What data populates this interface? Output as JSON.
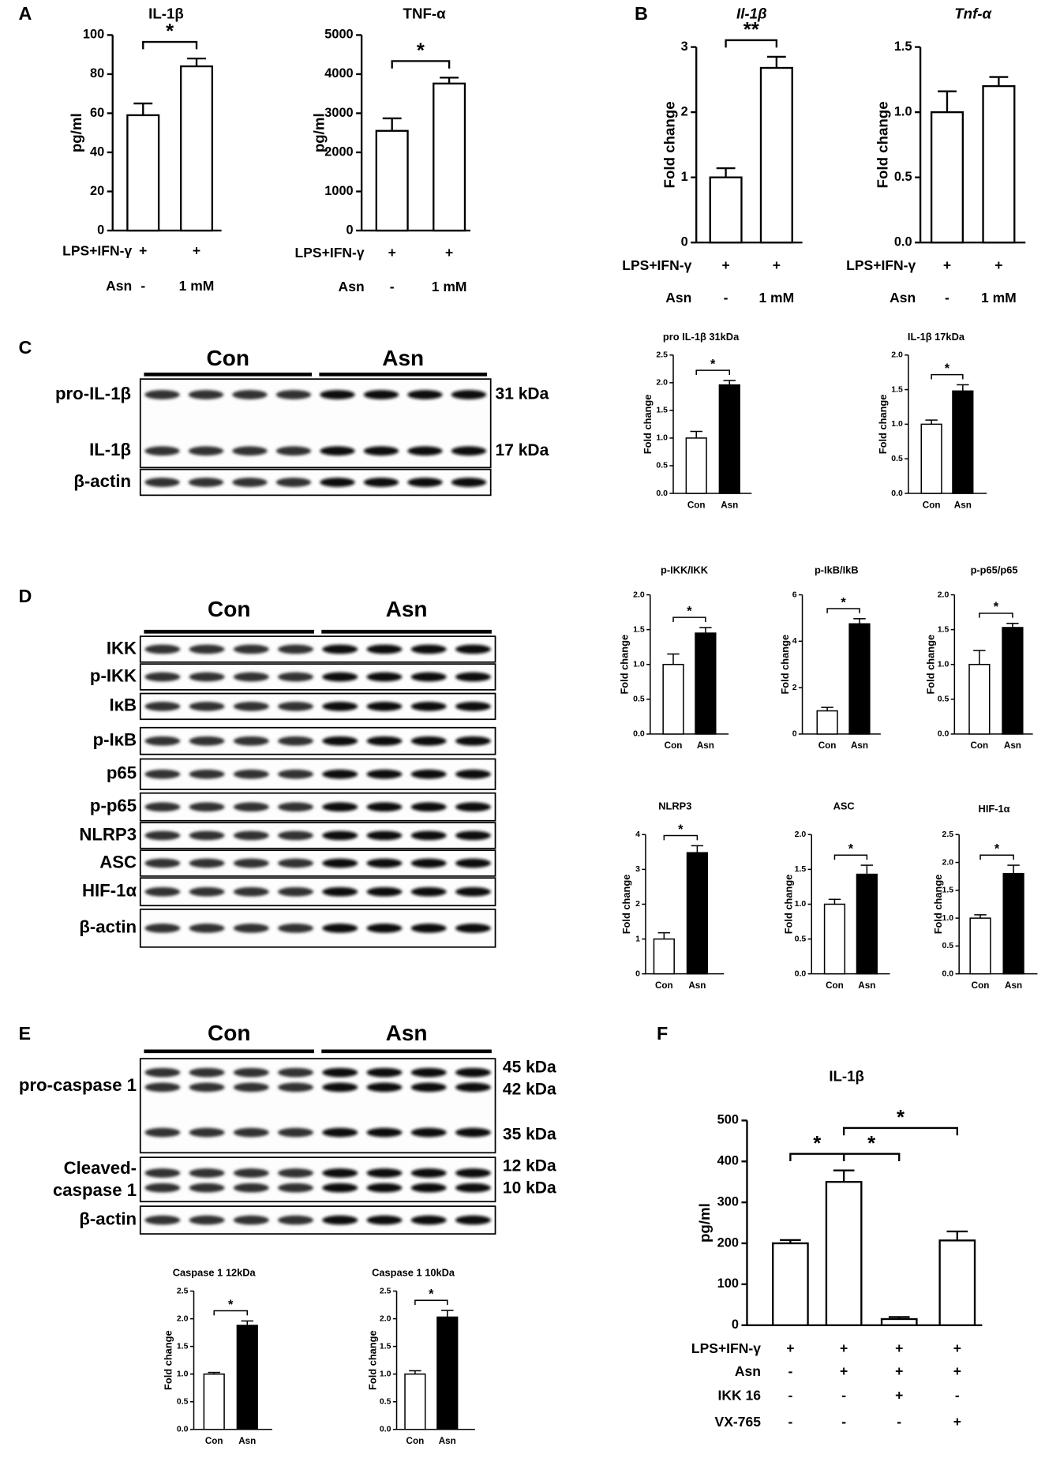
{
  "panel_labels": [
    "A",
    "B",
    "C",
    "D",
    "E",
    "F"
  ],
  "chart_data": [
    {
      "type": "bar",
      "title": "IL-1β",
      "y_label": "pg/ml",
      "ylim": [
        0,
        100
      ],
      "yticks": [
        0,
        20,
        40,
        60,
        80,
        100
      ],
      "values": [
        59,
        84
      ],
      "errors": [
        6,
        4
      ],
      "colors": [
        "#ffffff",
        "#ffffff"
      ],
      "conditions": [
        {
          "label": "LPS+IFN-γ",
          "values": [
            "+",
            "+"
          ]
        },
        {
          "label": "Asn",
          "values": [
            "-",
            "1 mM"
          ]
        }
      ],
      "significance": [
        {
          "label": "*",
          "from": 0,
          "to": 1
        }
      ]
    },
    {
      "type": "bar",
      "title": "TNF-α",
      "y_label": "pg/ml",
      "ylim": [
        0,
        5000
      ],
      "yticks": [
        0,
        1000,
        2000,
        3000,
        4000,
        5000
      ],
      "values": [
        2550,
        3760
      ],
      "errors": [
        320,
        150
      ],
      "colors": [
        "#ffffff",
        "#ffffff"
      ],
      "conditions": [
        {
          "label": "LPS+IFN-γ",
          "values": [
            "+",
            "+"
          ]
        },
        {
          "label": "Asn",
          "values": [
            "-",
            "1 mM"
          ]
        }
      ],
      "significance": [
        {
          "label": "*",
          "from": 0,
          "to": 1
        }
      ]
    },
    {
      "type": "bar",
      "title": "Il-1β",
      "title_style": "italic",
      "y_label": "Fold change",
      "ylim": [
        0,
        3
      ],
      "yticks": [
        0,
        1,
        2,
        3
      ],
      "values": [
        1.0,
        2.68
      ],
      "errors": [
        0.14,
        0.17
      ],
      "colors": [
        "#ffffff",
        "#ffffff"
      ],
      "conditions": [
        {
          "label": "LPS+IFN-γ",
          "values": [
            "+",
            "+"
          ]
        },
        {
          "label": "Asn",
          "values": [
            "-",
            "1 mM"
          ]
        }
      ],
      "significance": [
        {
          "label": "**",
          "from": 0,
          "to": 1
        }
      ]
    },
    {
      "type": "bar",
      "title": "Tnf-α",
      "title_style": "italic",
      "y_label": "Fold change",
      "ylim": [
        0,
        1.5
      ],
      "yticks": [
        {
          "value": 0,
          "label": "0.0"
        },
        {
          "value": 0.5,
          "label": "0.5"
        },
        {
          "value": 1,
          "label": "1.0"
        },
        {
          "value": 1.5,
          "label": "1.5"
        }
      ],
      "values": [
        1.0,
        1.2
      ],
      "errors": [
        0.16,
        0.07
      ],
      "colors": [
        "#ffffff",
        "#ffffff"
      ],
      "conditions": [
        {
          "label": "LPS+IFN-γ",
          "values": [
            "+",
            "+"
          ]
        },
        {
          "label": "Asn",
          "values": [
            "-",
            "1 mM"
          ]
        }
      ]
    },
    {
      "type": "bar",
      "title": "pro IL-1β 31kDa",
      "y_label": "Fold change",
      "ylim": [
        0,
        2.5
      ],
      "yticks": [
        {
          "value": 0,
          "label": "0.0"
        },
        {
          "value": 0.5,
          "label": "0.5"
        },
        {
          "value": 1,
          "label": "1.0"
        },
        {
          "value": 1.5,
          "label": "1.5"
        },
        {
          "value": 2,
          "label": "2.0"
        },
        {
          "value": 2.5,
          "label": "2.5"
        }
      ],
      "categories": [
        "Con",
        "Asn"
      ],
      "values": [
        1.0,
        1.96
      ],
      "errors": [
        0.12,
        0.08
      ],
      "colors": [
        "#ffffff",
        "#000000"
      ],
      "significance": [
        {
          "label": "*",
          "from": 0,
          "to": 1
        }
      ]
    },
    {
      "type": "bar",
      "title": "IL-1β 17kDa",
      "y_label": "Fold change",
      "ylim": [
        0,
        2
      ],
      "yticks": [
        {
          "value": 0,
          "label": "0.0"
        },
        {
          "value": 0.5,
          "label": "0.5"
        },
        {
          "value": 1,
          "label": "1.0"
        },
        {
          "value": 1.5,
          "label": "1.5"
        },
        {
          "value": 2,
          "label": "2.0"
        }
      ],
      "categories": [
        "Con",
        "Asn"
      ],
      "values": [
        1.0,
        1.48
      ],
      "errors": [
        0.06,
        0.09
      ],
      "colors": [
        "#ffffff",
        "#000000"
      ],
      "significance": [
        {
          "label": "*",
          "from": 0,
          "to": 1
        }
      ]
    },
    {
      "type": "bar",
      "title": "p-IKK/IKK",
      "y_label": "Fold change",
      "ylim": [
        0,
        2
      ],
      "yticks": [
        {
          "value": 0,
          "label": "0.0"
        },
        {
          "value": 0.5,
          "label": "0.5"
        },
        {
          "value": 1,
          "label": "1.0"
        },
        {
          "value": 1.5,
          "label": "1.5"
        },
        {
          "value": 2,
          "label": "2.0"
        }
      ],
      "categories": [
        "Con",
        "Asn"
      ],
      "values": [
        1.0,
        1.45
      ],
      "errors": [
        0.15,
        0.08
      ],
      "colors": [
        "#ffffff",
        "#000000"
      ],
      "significance": [
        {
          "label": "*",
          "from": 0,
          "to": 1
        }
      ]
    },
    {
      "type": "bar",
      "title": "p-IkB/IkB",
      "y_label": "Fold change",
      "ylim": [
        0,
        6
      ],
      "yticks": [
        0,
        2,
        4,
        6
      ],
      "categories": [
        "Con",
        "Asn"
      ],
      "values": [
        1.0,
        4.75
      ],
      "errors": [
        0.15,
        0.22
      ],
      "colors": [
        "#ffffff",
        "#000000"
      ],
      "significance": [
        {
          "label": "*",
          "from": 0,
          "to": 1
        }
      ]
    },
    {
      "type": "bar",
      "title": "p-p65/p65",
      "y_label": "Fold change",
      "ylim": [
        0,
        2
      ],
      "yticks": [
        {
          "value": 0,
          "label": "0.0"
        },
        {
          "value": 0.5,
          "label": "0.5"
        },
        {
          "value": 1,
          "label": "1.0"
        },
        {
          "value": 1.5,
          "label": "1.5"
        },
        {
          "value": 2,
          "label": "2.0"
        }
      ],
      "categories": [
        "Con",
        "Asn"
      ],
      "values": [
        1.0,
        1.53
      ],
      "errors": [
        0.2,
        0.06
      ],
      "colors": [
        "#ffffff",
        "#000000"
      ],
      "significance": [
        {
          "label": "*",
          "from": 0,
          "to": 1
        }
      ]
    },
    {
      "type": "bar",
      "title": "NLRP3",
      "y_label": "Fold change",
      "ylim": [
        0,
        4
      ],
      "yticks": [
        0,
        1,
        2,
        3,
        4
      ],
      "categories": [
        "Con",
        "Asn"
      ],
      "values": [
        1.0,
        3.48
      ],
      "errors": [
        0.18,
        0.2
      ],
      "colors": [
        "#ffffff",
        "#000000"
      ],
      "significance": [
        {
          "label": "*",
          "from": 0,
          "to": 1
        }
      ]
    },
    {
      "type": "bar",
      "title": "ASC",
      "y_label": "Fold change",
      "ylim": [
        0,
        2
      ],
      "yticks": [
        {
          "value": 0,
          "label": "0.0"
        },
        {
          "value": 0.5,
          "label": "0.5"
        },
        {
          "value": 1,
          "label": "1.0"
        },
        {
          "value": 1.5,
          "label": "1.5"
        },
        {
          "value": 2,
          "label": "2.0"
        }
      ],
      "categories": [
        "Con",
        "Asn"
      ],
      "values": [
        1.0,
        1.43
      ],
      "errors": [
        0.07,
        0.13
      ],
      "colors": [
        "#ffffff",
        "#000000"
      ],
      "significance": [
        {
          "label": "*",
          "from": 0,
          "to": 1
        }
      ]
    },
    {
      "type": "bar",
      "title": "HIF-1α",
      "y_label": "Fold change",
      "ylim": [
        0,
        2.5
      ],
      "yticks": [
        {
          "value": 0,
          "label": "0.0"
        },
        {
          "value": 0.5,
          "label": "0.5"
        },
        {
          "value": 1,
          "label": "1.0"
        },
        {
          "value": 1.5,
          "label": "1.5"
        },
        {
          "value": 2,
          "label": "2.0"
        },
        {
          "value": 2.5,
          "label": "2.5"
        }
      ],
      "categories": [
        "Con",
        "Asn"
      ],
      "values": [
        1.0,
        1.8
      ],
      "errors": [
        0.06,
        0.15
      ],
      "colors": [
        "#ffffff",
        "#000000"
      ],
      "significance": [
        {
          "label": "*",
          "from": 0,
          "to": 1
        }
      ]
    },
    {
      "type": "bar",
      "title": "Caspase 1 12kDa",
      "y_label": "Fold change",
      "ylim": [
        0,
        2.5
      ],
      "yticks": [
        {
          "value": 0,
          "label": "0.0"
        },
        {
          "value": 0.5,
          "label": "0.5"
        },
        {
          "value": 1,
          "label": "1.0"
        },
        {
          "value": 1.5,
          "label": "1.5"
        },
        {
          "value": 2,
          "label": "2.0"
        },
        {
          "value": 2.5,
          "label": "2.5"
        }
      ],
      "categories": [
        "Con",
        "Asn"
      ],
      "values": [
        1.0,
        1.88
      ],
      "errors": [
        0.03,
        0.08
      ],
      "colors": [
        "#ffffff",
        "#000000"
      ],
      "significance": [
        {
          "label": "*",
          "from": 0,
          "to": 1
        }
      ]
    },
    {
      "type": "bar",
      "title": "Caspase 1 10kDa",
      "y_label": "Fold change",
      "ylim": [
        0,
        2.5
      ],
      "yticks": [
        {
          "value": 0,
          "label": "0.0"
        },
        {
          "value": 0.5,
          "label": "0.5"
        },
        {
          "value": 1,
          "label": "1.0"
        },
        {
          "value": 1.5,
          "label": "1.5"
        },
        {
          "value": 2,
          "label": "2.0"
        },
        {
          "value": 2.5,
          "label": "2.5"
        }
      ],
      "categories": [
        "Con",
        "Asn"
      ],
      "values": [
        1.0,
        2.03
      ],
      "errors": [
        0.06,
        0.12
      ],
      "colors": [
        "#ffffff",
        "#000000"
      ],
      "significance": [
        {
          "label": "*",
          "from": 0,
          "to": 1
        }
      ]
    },
    {
      "type": "bar",
      "title": "IL-1β",
      "y_label": "pg/ml",
      "ylim": [
        0,
        500
      ],
      "yticks": [
        0,
        100,
        200,
        300,
        400,
        500
      ],
      "values": [
        200,
        350,
        15,
        207
      ],
      "errors": [
        8,
        28,
        5,
        22
      ],
      "colors": [
        "#ffffff",
        "#ffffff",
        "#ffffff",
        "#ffffff"
      ],
      "conditions": [
        {
          "label": "LPS+IFN-γ",
          "values": [
            "+",
            "+",
            "+",
            "+"
          ]
        },
        {
          "label": "Asn",
          "values": [
            "-",
            "+",
            "+",
            "+"
          ]
        },
        {
          "label": "IKK 16",
          "values": [
            "-",
            "-",
            "+",
            "-"
          ]
        },
        {
          "label": "VX-765",
          "values": [
            "-",
            "-",
            "-",
            "+"
          ]
        }
      ],
      "significance": [
        {
          "label": "*",
          "from": 0,
          "to": 1
        },
        {
          "label": "*",
          "from": 1,
          "to": 2
        },
        {
          "label": "*",
          "from": 1,
          "to": 3
        }
      ]
    }
  ],
  "blots": [
    {
      "groups": [
        "Con",
        "Asn"
      ],
      "row_labels": [
        "pro-IL-1β",
        "IL-1β",
        "β-actin"
      ],
      "kda_labels": [
        "31 kDa",
        "17 kDa"
      ]
    },
    {
      "groups": [
        "Con",
        "Asn"
      ],
      "row_labels": [
        "IKK",
        "p-IKK",
        "IκB",
        "p-IκB",
        "p65",
        "p-p65",
        "NLRP3",
        "ASC",
        "HIF-1α",
        "β-actin"
      ]
    },
    {
      "groups": [
        "Con",
        "Asn"
      ],
      "row_labels": [
        "pro-caspase 1",
        "Cleaved-",
        "caspase 1",
        "β-actin"
      ],
      "kda_labels": [
        "45 kDa",
        "42 kDa",
        "35 kDa",
        "12 kDa",
        "10 kDa"
      ]
    }
  ]
}
